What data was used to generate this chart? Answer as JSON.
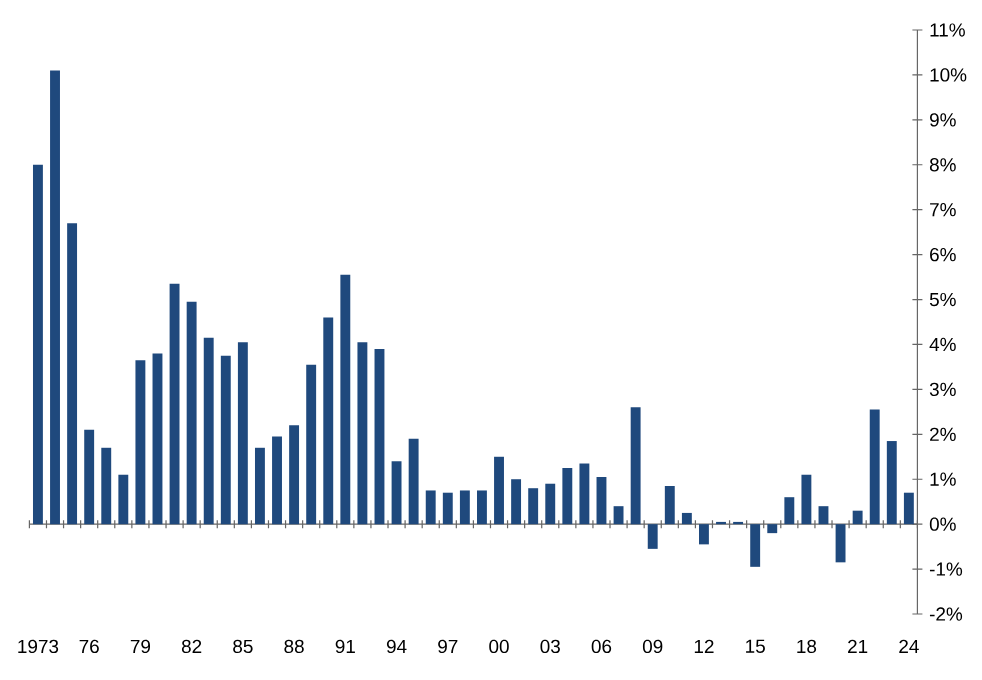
{
  "chart_data": {
    "type": "bar",
    "categories": [
      "1973",
      null,
      null,
      "76",
      null,
      null,
      "79",
      null,
      null,
      "82",
      null,
      null,
      "85",
      null,
      null,
      "88",
      null,
      null,
      "91",
      null,
      null,
      "94",
      null,
      null,
      "97",
      null,
      null,
      "00",
      null,
      null,
      "03",
      null,
      null,
      "06",
      null,
      null,
      "09",
      null,
      null,
      "12",
      null,
      null,
      "15",
      null,
      null,
      "18",
      null,
      null,
      "21",
      null,
      null,
      "24"
    ],
    "values": [
      8.0,
      10.1,
      6.7,
      2.1,
      1.7,
      1.1,
      3.65,
      3.8,
      5.35,
      4.95,
      4.15,
      3.75,
      4.05,
      1.7,
      1.95,
      2.2,
      3.55,
      4.6,
      5.55,
      4.05,
      3.9,
      1.4,
      1.9,
      0.75,
      0.7,
      0.75,
      0.75,
      1.5,
      1.0,
      0.8,
      0.9,
      1.25,
      1.35,
      1.05,
      0.4,
      2.6,
      -0.55,
      0.85,
      0.25,
      -0.45,
      0.05,
      0.05,
      -0.95,
      -0.2,
      0.6,
      1.1,
      0.4,
      -0.85,
      0.3,
      2.55,
      1.85,
      0.7
    ],
    "color": "#1f497d",
    "ylim": [
      -2,
      11
    ],
    "yticks": [
      {
        "value": -2,
        "label": "-2%"
      },
      {
        "value": -1,
        "label": "-1%"
      },
      {
        "value": 0,
        "label": "0%"
      },
      {
        "value": 1,
        "label": "1%"
      },
      {
        "value": 2,
        "label": "2%"
      },
      {
        "value": 3,
        "label": "3%"
      },
      {
        "value": 4,
        "label": "4%"
      },
      {
        "value": 5,
        "label": "5%"
      },
      {
        "value": 6,
        "label": "6%"
      },
      {
        "value": 7,
        "label": "7%"
      },
      {
        "value": 8,
        "label": "8%"
      },
      {
        "value": 9,
        "label": "9%"
      },
      {
        "value": 10,
        "label": "10%"
      },
      {
        "value": 11,
        "label": "11%"
      }
    ]
  }
}
